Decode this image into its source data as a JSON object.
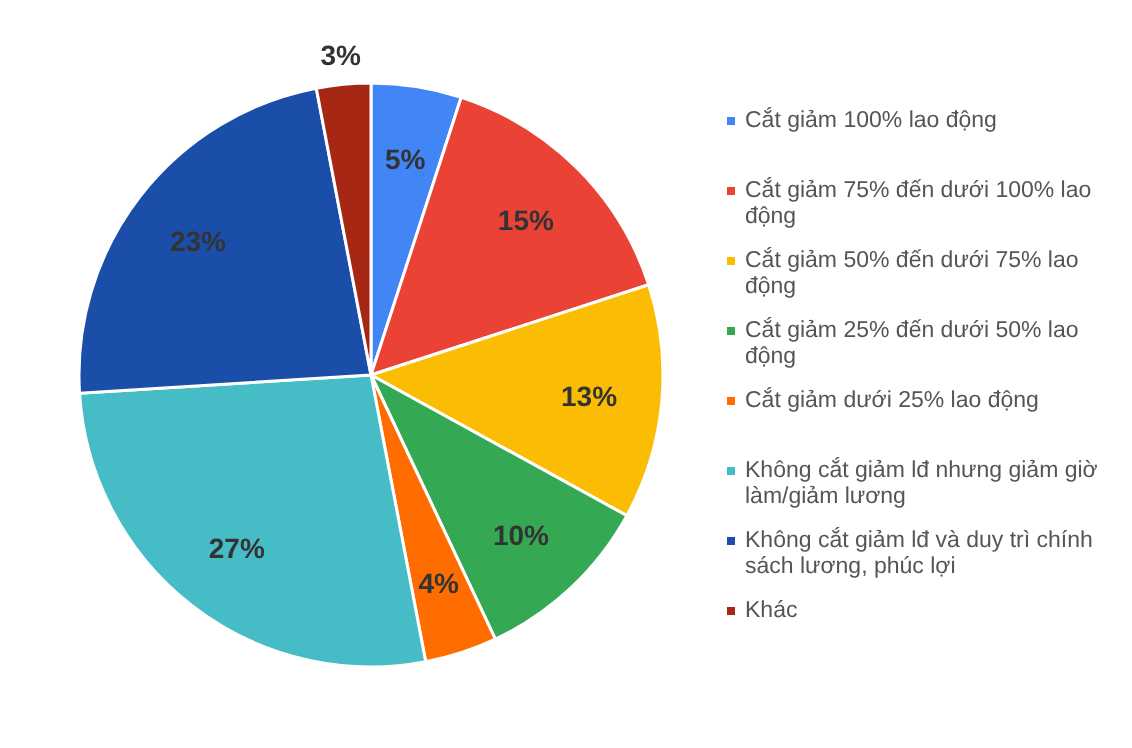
{
  "chart_data": {
    "type": "pie",
    "categories": [
      "Cắt giảm 100% lao động",
      "Cắt giảm 75% đến dưới 100% lao động",
      "Cắt giảm 50% đến dưới 75% lao động",
      "Cắt giảm 25% đến dưới 50% lao động",
      "Cắt giảm dưới 25% lao động",
      "Không cắt giảm lđ nhưng giảm giờ làm/giảm lương",
      "Không cắt giảm lđ và duy trì chính sách lương, phúc lợi",
      "Khác"
    ],
    "values": [
      5,
      15,
      13,
      10,
      4,
      27,
      23,
      3
    ],
    "colors": [
      "#4285f4",
      "#ea4335",
      "#fbbc04",
      "#34a853",
      "#ff6d01",
      "#46bdc6",
      "#1a4ea8",
      "#a52714"
    ],
    "value_labels": [
      "5%",
      "15%",
      "13%",
      "10%",
      "4%",
      "27%",
      "23%",
      "3%"
    ],
    "legend": "right"
  }
}
